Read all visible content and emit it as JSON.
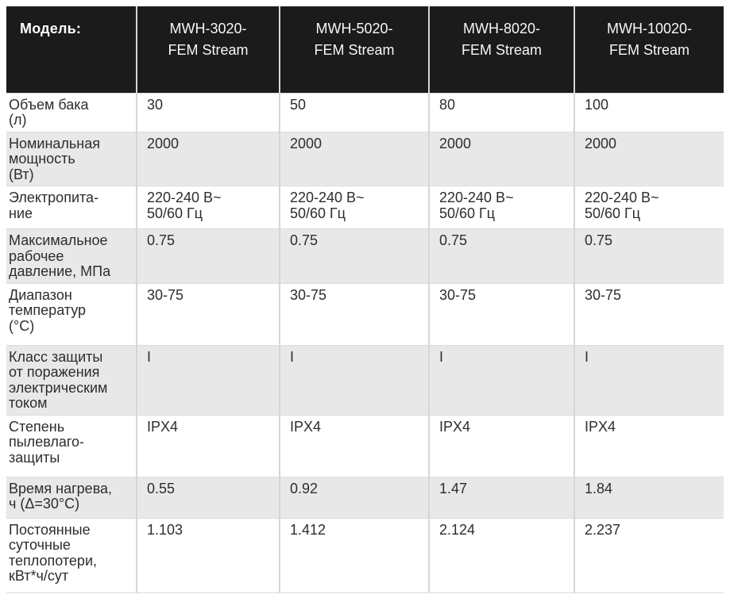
{
  "table": {
    "header": {
      "label": "Модель:",
      "models": [
        "MWH-3020-\nFEM Stream",
        "MWH-5020-\nFEM Stream",
        "MWH-8020-\nFEM Stream",
        "MWH-10020-\nFEM Stream"
      ]
    },
    "rows": [
      {
        "label": "Объем бака\n(л)",
        "values": [
          "30",
          "50",
          "80",
          "100"
        ]
      },
      {
        "label": "Номинальная\nмощность\n(Вт)",
        "values": [
          "2000",
          "2000",
          "2000",
          "2000"
        ]
      },
      {
        "label": "Электропита-\nние",
        "values": [
          "220-240 В~\n50/60 Гц",
          "220-240 В~\n50/60 Гц",
          "220-240 В~\n50/60 Гц",
          "220-240 В~\n50/60 Гц"
        ]
      },
      {
        "label": "Максимальное\nрабочее\nдавление, МПа",
        "values": [
          "0.75",
          "0.75",
          "0.75",
          "0.75"
        ]
      },
      {
        "label": "Диапазон\nтемператур\n(°С)",
        "values": [
          "30-75",
          "30-75",
          "30-75",
          "30-75"
        ]
      },
      {
        "label": "Класс защиты\nот поражения\nэлектрическим\nтоком",
        "values": [
          "I",
          "I",
          "I",
          "I"
        ]
      },
      {
        "label": "Степень\nпылевлаго-\nзащиты",
        "values": [
          "IPX4",
          "IPX4",
          "IPX4",
          "IPX4"
        ]
      },
      {
        "label": "Время нагрева,\nч (Δ=30°С)",
        "values": [
          "0.55",
          "0.92",
          "1.47",
          "1.84"
        ]
      },
      {
        "label": "Постоянные\nсуточные\nтеплопотери,\nкВт*ч/сут",
        "values": [
          "1.103",
          "1.412",
          "2.124",
          "2.237"
        ]
      }
    ],
    "colors": {
      "header_bg": "#1b1b1b",
      "header_text": "#ffffff",
      "alt_row_bg": "#e8e8e8",
      "body_text": "#2d2d2d",
      "divider": "#d6d6d6"
    }
  }
}
